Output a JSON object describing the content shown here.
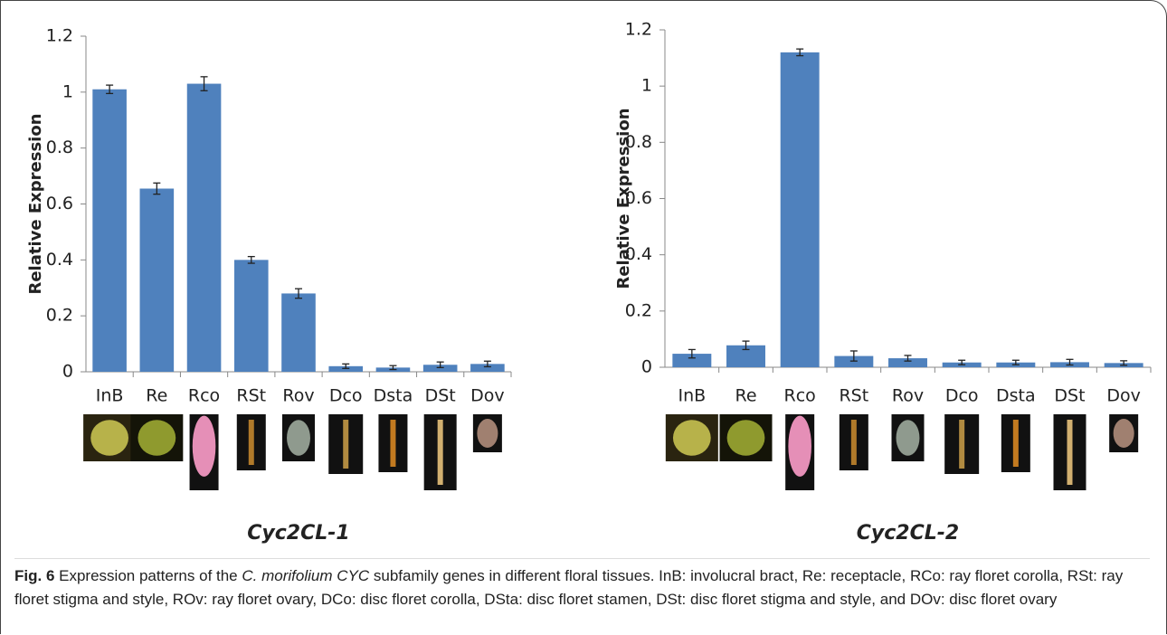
{
  "chart_data": [
    {
      "type": "bar",
      "title": "Cyc2CL-1",
      "y_label": "Relative Expression",
      "categories": [
        "InB",
        "Re",
        "Rco",
        "RSt",
        "Rov",
        "Dco",
        "Dsta",
        "DSt",
        "Dov"
      ],
      "values": [
        1.01,
        0.655,
        1.03,
        0.4,
        0.28,
        0.02,
        0.015,
        0.025,
        0.028
      ],
      "errors": [
        0.015,
        0.02,
        0.025,
        0.012,
        0.017,
        0.008,
        0.007,
        0.01,
        0.01
      ],
      "color": "#4f81bd",
      "ylim": [
        0,
        1.2
      ],
      "yticks": [
        0,
        0.2,
        0.4,
        0.6,
        0.8,
        1,
        1.2
      ]
    },
    {
      "type": "bar",
      "title": "Cyc2CL-2",
      "y_label": "Relative Expression",
      "categories": [
        "InB",
        "Re",
        "Rco",
        "RSt",
        "Rov",
        "Dco",
        "Dsta",
        "DSt",
        "Dov"
      ],
      "values": [
        0.048,
        0.078,
        1.12,
        0.04,
        0.032,
        0.017,
        0.017,
        0.018,
        0.015
      ],
      "errors": [
        0.015,
        0.015,
        0.012,
        0.018,
        0.01,
        0.008,
        0.008,
        0.01,
        0.008
      ],
      "color": "#4f81bd",
      "ylim": [
        0,
        1.2
      ],
      "yticks": [
        0,
        0.2,
        0.4,
        0.6,
        0.8,
        1,
        1.2
      ]
    }
  ],
  "caption": {
    "label": "Fig. 6",
    "text_before": "Expression patterns of the",
    "italic": "C. morifolium CYC",
    "text_after": "subfamily genes in different floral tissues. InB: involucral bract, Re: receptacle, RCo: ray floret corolla, RSt: ray floret stigma and style, ROv: ray floret ovary, DCo: disc floret corolla, DSta: disc floret stamen, DSt: disc floret stigma and style, and DOv: disc floret ovary"
  }
}
